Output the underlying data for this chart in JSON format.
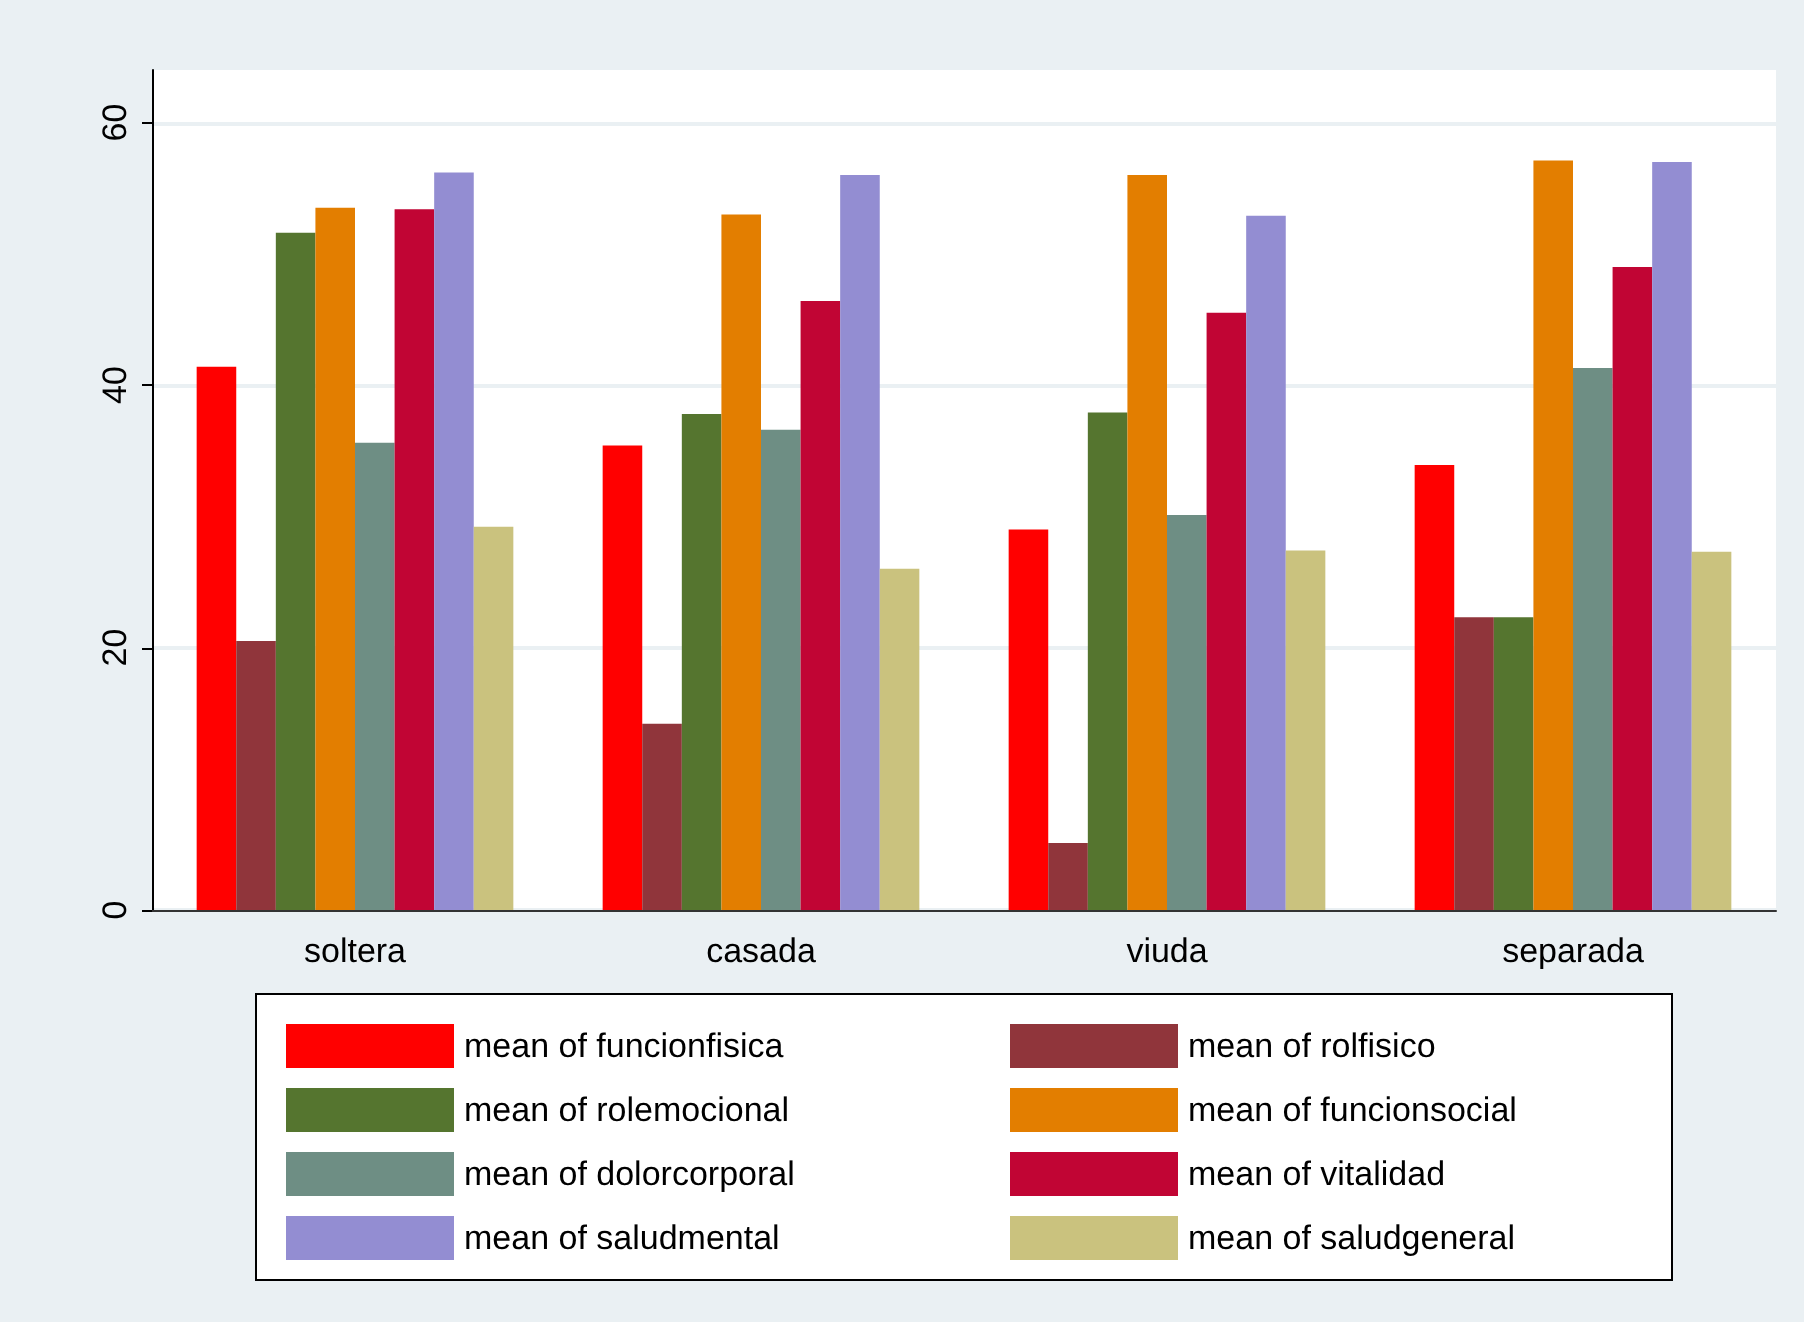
{
  "chart_data": {
    "type": "bar",
    "categories": [
      "soltera",
      "casada",
      "viuda",
      "separada"
    ],
    "series": [
      {
        "name": "mean of funcionfisica",
        "color": "#ff0000",
        "values": [
          41.4,
          35.4,
          29.0,
          33.9
        ]
      },
      {
        "name": "mean of rolfisico",
        "color": "#90353b",
        "values": [
          20.5,
          14.2,
          5.1,
          22.3
        ]
      },
      {
        "name": "mean of rolemocional",
        "color": "#55752f",
        "values": [
          51.6,
          37.8,
          37.9,
          22.3
        ]
      },
      {
        "name": "mean of funcionsocial",
        "color": "#e37e00",
        "values": [
          53.5,
          53.0,
          56.0,
          57.1
        ]
      },
      {
        "name": "mean of dolorcorporal",
        "color": "#6e8e84",
        "values": [
          35.6,
          36.6,
          30.1,
          41.3
        ]
      },
      {
        "name": "mean of vitalidad",
        "color": "#c10534",
        "values": [
          53.4,
          46.4,
          45.5,
          49.0
        ]
      },
      {
        "name": "mean of saludmental",
        "color": "#938dd2",
        "values": [
          56.2,
          56.0,
          52.9,
          57.0
        ]
      },
      {
        "name": "mean of saludgeneral",
        "color": "#cac27e",
        "values": [
          29.2,
          26.0,
          27.4,
          27.3
        ]
      }
    ],
    "ylim": [
      0,
      64
    ],
    "yticks": [
      0,
      20,
      40,
      60
    ],
    "grid": "y",
    "legend": "bottom"
  }
}
